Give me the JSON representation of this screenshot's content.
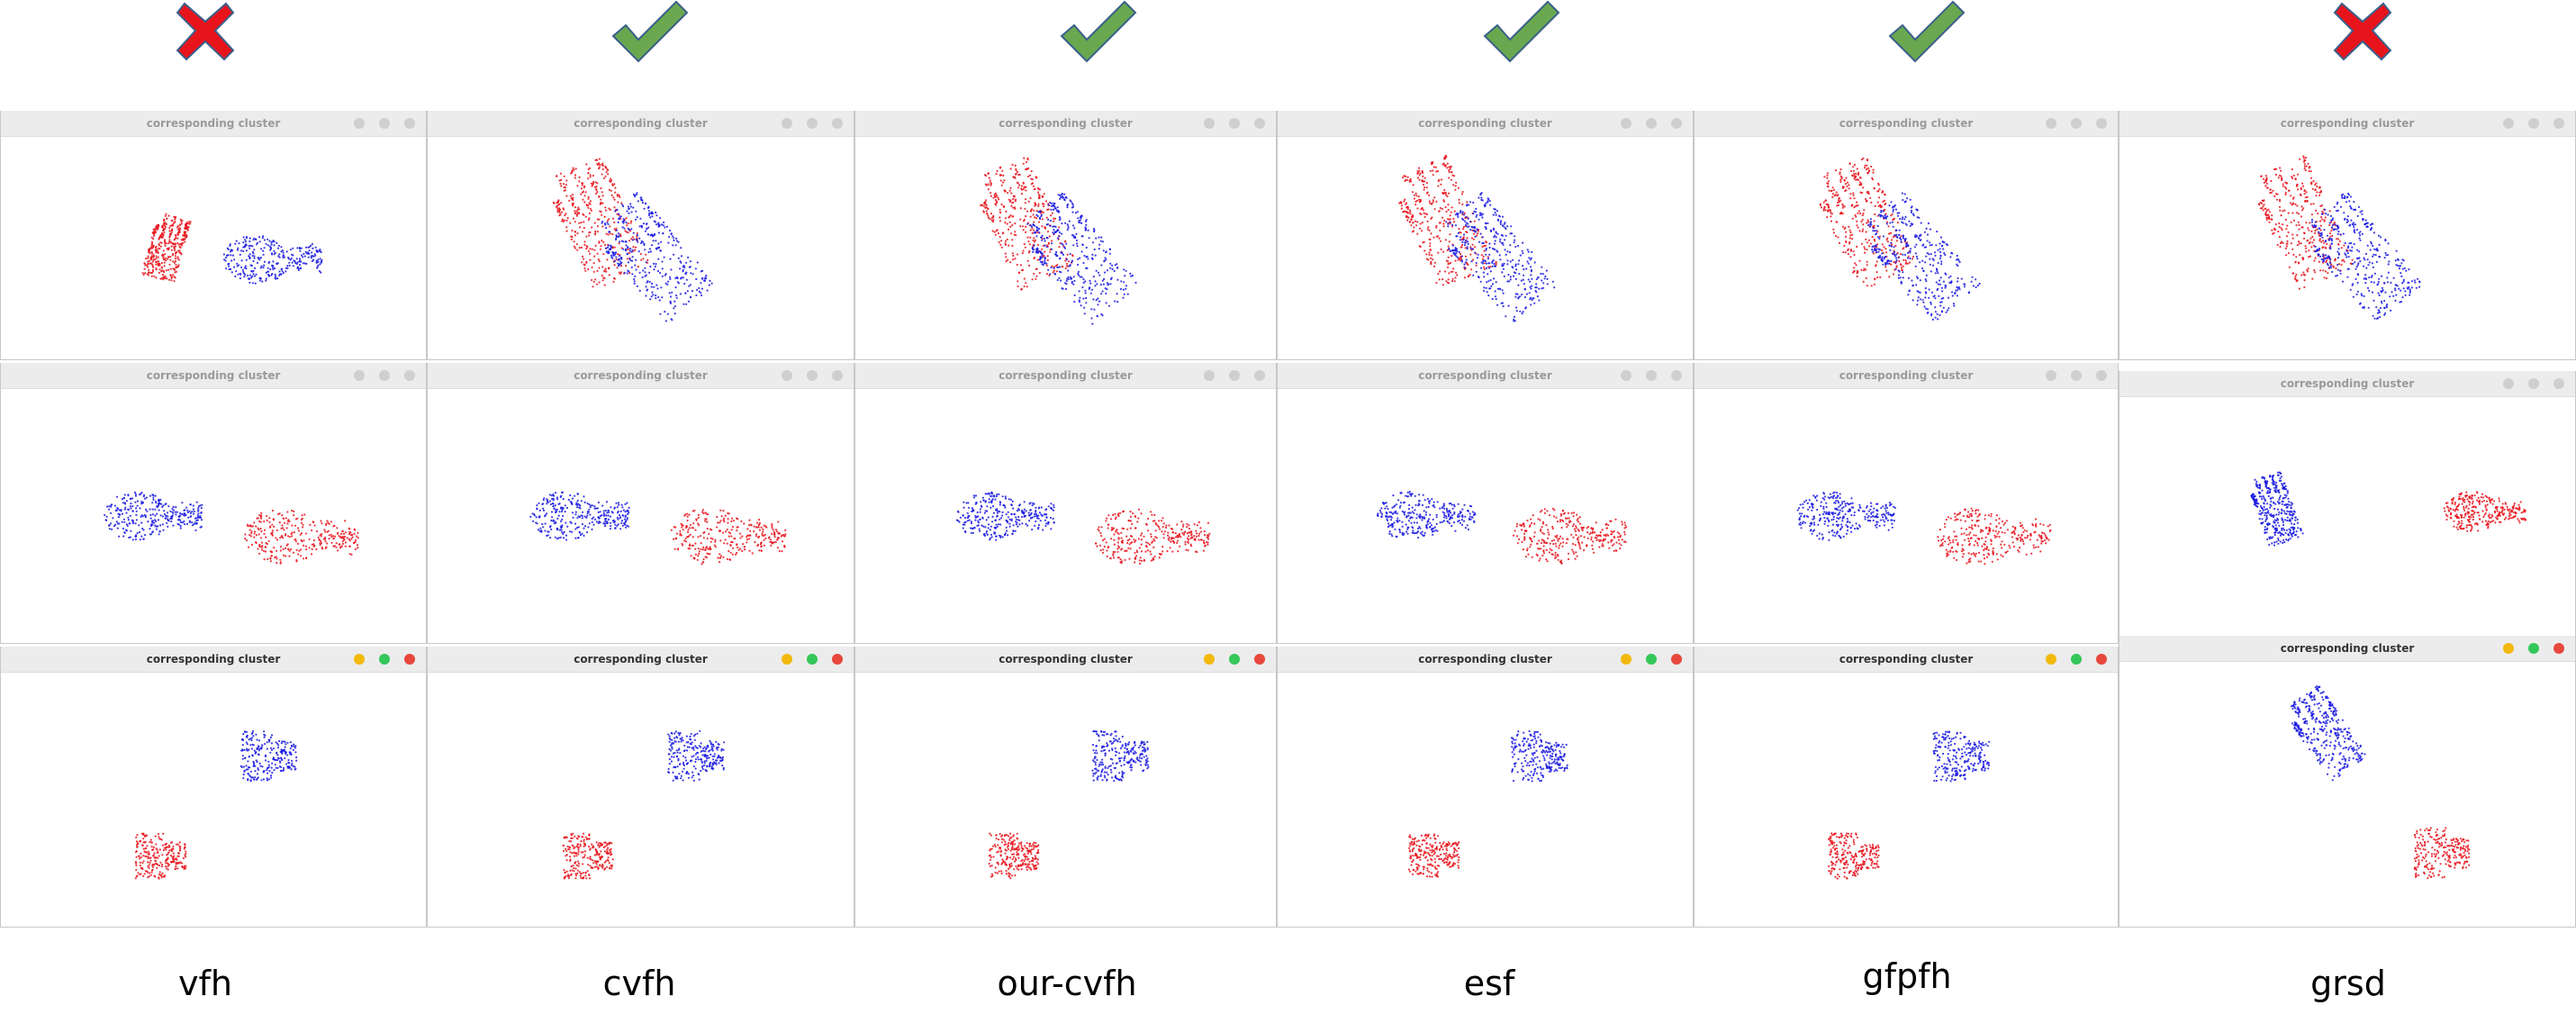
{
  "columns": [
    {
      "method": "vfh",
      "result": "incorrect",
      "result_icon": "red-x-icon"
    },
    {
      "method": "cvfh",
      "result": "correct",
      "result_icon": "green-check-icon"
    },
    {
      "method": "our-cvfh",
      "result": "correct",
      "result_icon": "green-check-icon"
    },
    {
      "method": "esf",
      "result": "correct",
      "result_icon": "green-check-icon"
    },
    {
      "method": "gfpfh",
      "result": "correct",
      "result_icon": "green-check-icon"
    },
    {
      "method": "grsd",
      "result": "incorrect",
      "result_icon": "red-x-icon"
    }
  ],
  "window_title": "corresponding cluster",
  "window_buttons": [
    "minimize-button",
    "maximize-button",
    "close-button"
  ],
  "colors": {
    "red_cloud": "#e8141c",
    "blue_cloud": "#1a1ae0",
    "check": "#6aa84f",
    "cross": "#e8141c",
    "btn_yellow": "#f2b90c",
    "btn_green": "#34c759",
    "btn_red": "#e8473c"
  }
}
